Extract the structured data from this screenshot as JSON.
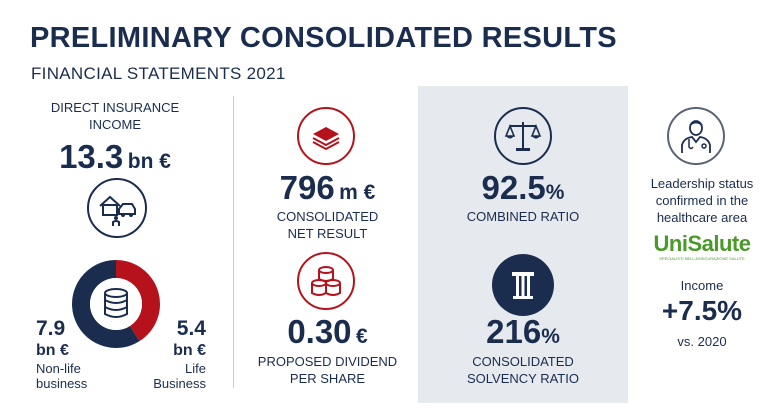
{
  "header": {
    "title": "PRELIMINARY CONSOLIDATED RESULTS",
    "subtitle": "FINANCIAL STATEMENTS 2021"
  },
  "direct_income": {
    "label_line1": "DIRECT INSURANCE",
    "label_line2": "INCOME",
    "value": "13.3",
    "unit": "bn €",
    "icon": "home-car-person-icon",
    "center_icon": "coin-stack-icon",
    "non_life": {
      "value": "7.9",
      "unit": "bn €",
      "desc_line1": "Non-life",
      "desc_line2": "business",
      "share": 0.59,
      "color": "#1b2d4f"
    },
    "life": {
      "value": "5.4",
      "unit": "bn €",
      "desc_line1": "Life",
      "desc_line2": "Business",
      "share": 0.41,
      "color": "#b5121b"
    }
  },
  "net_result": {
    "value": "796",
    "unit": "m €",
    "label_line1": "CONSOLIDATED",
    "label_line2": "NET RESULT",
    "icon": "banknotes-icon"
  },
  "dividend": {
    "value": "0.30",
    "unit": "€",
    "label_line1": "PROPOSED DIVIDEND",
    "label_line2": "PER SHARE",
    "icon": "coins-icon"
  },
  "combined_ratio": {
    "value": "92.5",
    "unit": "%",
    "label": "COMBINED RATIO",
    "icon": "scales-icon"
  },
  "solvency_ratio": {
    "value": "216",
    "unit": "%",
    "label_line1": "CONSOLIDATED",
    "label_line2": "SOLVENCY RATIO",
    "icon": "column-icon"
  },
  "healthcare": {
    "text_line1": "Leadership status",
    "text_line2": "confirmed in the",
    "text_line3": "healthcare area",
    "logo_text": "UniSalute",
    "logo_tagline": "SPECIALISTI NELL'ASSICURAZIONE SALUTE",
    "income_label": "Income",
    "income_value": "+7.5%",
    "income_comparison": "vs. 2020",
    "icon": "doctor-icon"
  },
  "colors": {
    "navy": "#1b2d4f",
    "red": "#b5121b",
    "panel_grey": "#e6e9ee",
    "unisalute_green": "#4a9a2a"
  }
}
